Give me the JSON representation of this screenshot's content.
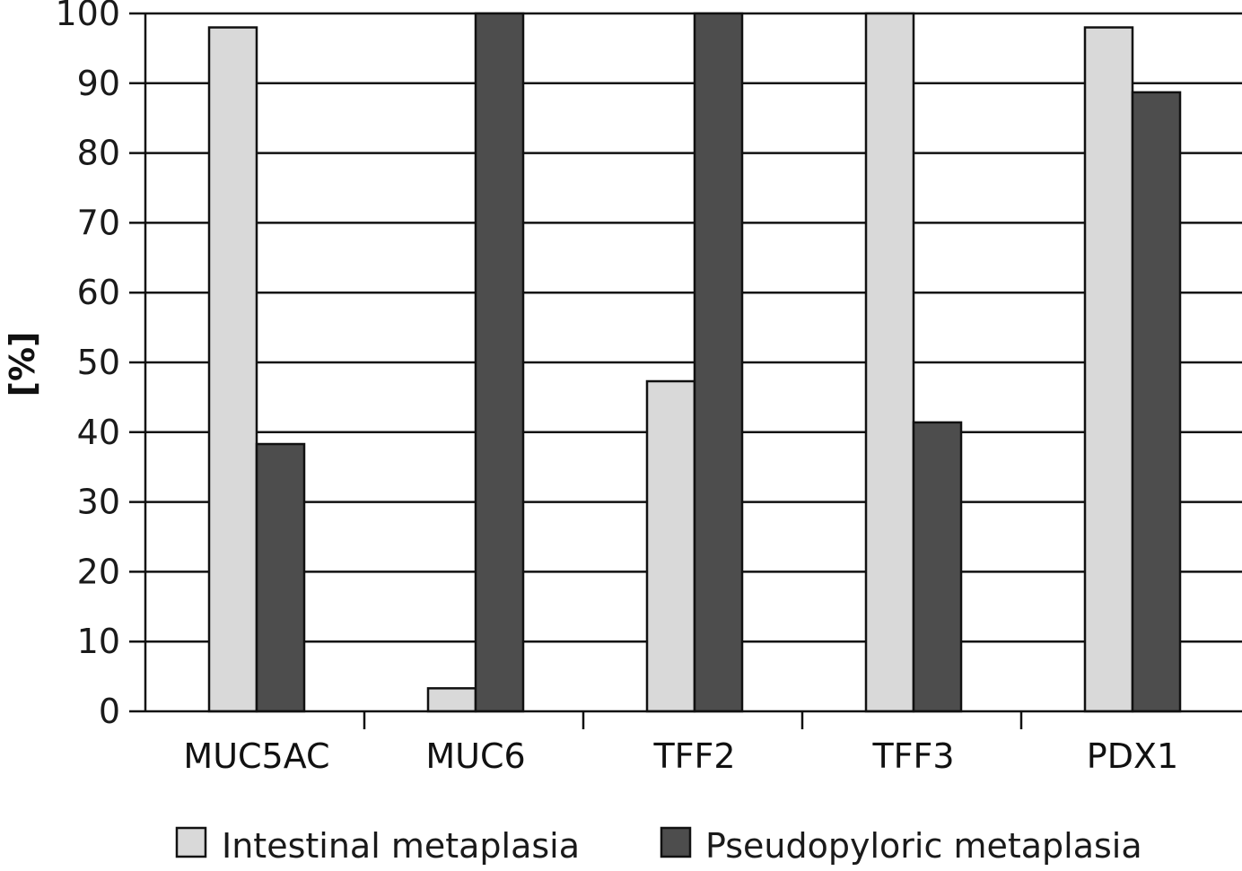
{
  "chart_data": {
    "type": "bar",
    "categories": [
      "MUC5AC",
      "MUC6",
      "TFF2",
      "TFF3",
      "PDX1"
    ],
    "series": [
      {
        "name": "Intestinal metaplasia",
        "color": "#d9d9d9",
        "values": [
          98,
          3.3,
          47.3,
          100,
          98
        ]
      },
      {
        "name": "Pseudopyloric metaplasia",
        "color": "#4d4d4d",
        "values": [
          38.3,
          100,
          100,
          41.4,
          88.7
        ]
      }
    ],
    "title": "",
    "xlabel": "",
    "ylabel": "[%]",
    "ylim": [
      0,
      100
    ],
    "yticks": [
      0,
      10,
      20,
      30,
      40,
      50,
      60,
      70,
      80,
      90,
      100
    ],
    "grid": true,
    "legend": "bottom"
  }
}
